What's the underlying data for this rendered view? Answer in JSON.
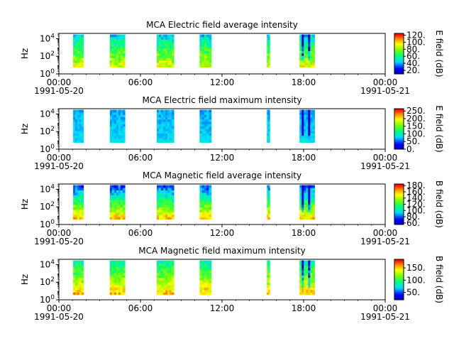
{
  "figure": {
    "background": "#ffffff",
    "x_tick_labels": [
      "00:00",
      "06:00",
      "12:00",
      "18:00",
      "00:00"
    ],
    "x_date_labels": [
      {
        "at": 0,
        "text": "1991-05-20"
      },
      {
        "at": 4,
        "text": "1991-05-21"
      }
    ]
  },
  "chart_data": [
    {
      "type": "heatmap",
      "title": "MCA  Electric field average intensity",
      "xlabel": "",
      "ylabel": "Hz",
      "yscale": "log",
      "y_tick_labels": [
        "10^0",
        "10^2",
        "10^4"
      ],
      "ylim_hz": [
        1,
        40000
      ],
      "x_hours": [
        0,
        24
      ],
      "segments_hours": [
        [
          1.05,
          1.8
        ],
        [
          3.75,
          4.85
        ],
        [
          7.2,
          8.45
        ],
        [
          10.35,
          11.2
        ],
        [
          15.3,
          15.5
        ],
        [
          17.7,
          18.8
        ]
      ],
      "colorbar": {
        "label": "E field (dB)",
        "ticks": [
          "20.",
          "40.",
          "60.",
          "80.",
          "100.",
          "120."
        ],
        "range": [
          10,
          125
        ]
      },
      "value_range": [
        40,
        120
      ],
      "colormap": "rainbow"
    },
    {
      "type": "heatmap",
      "title": "MCA  Electric field maximum intensity",
      "xlabel": "",
      "ylabel": "Hz",
      "yscale": "log",
      "y_tick_labels": [
        "10^0",
        "10^2",
        "10^4"
      ],
      "ylim_hz": [
        1,
        40000
      ],
      "x_hours": [
        0,
        24
      ],
      "segments_hours": [
        [
          1.05,
          1.8
        ],
        [
          3.75,
          4.85
        ],
        [
          7.2,
          8.45
        ],
        [
          10.35,
          11.2
        ],
        [
          15.3,
          15.5
        ],
        [
          17.7,
          18.8
        ]
      ],
      "colorbar": {
        "label": "E field (dB)",
        "ticks": [
          "0.",
          "50.",
          "100.",
          "150.",
          "200.",
          "250."
        ],
        "range": [
          0,
          265
        ]
      },
      "value_range": [
        40,
        120
      ],
      "colormap": "rainbow"
    },
    {
      "type": "heatmap",
      "title": "MCA  Magnetic field average intensity",
      "xlabel": "",
      "ylabel": "Hz",
      "yscale": "log",
      "y_tick_labels": [
        "10^0",
        "10^2",
        "10^4"
      ],
      "ylim_hz": [
        1,
        40000
      ],
      "x_hours": [
        0,
        24
      ],
      "segments_hours": [
        [
          1.05,
          1.8
        ],
        [
          3.75,
          4.85
        ],
        [
          7.2,
          8.45
        ],
        [
          10.35,
          11.2
        ],
        [
          15.3,
          15.5
        ],
        [
          17.7,
          18.8
        ]
      ],
      "colorbar": {
        "label": "B field (dB)",
        "ticks": [
          "60.",
          "80.",
          "100.",
          "120.",
          "140.",
          "160.",
          "180."
        ],
        "range": [
          55,
          185
        ]
      },
      "value_range": [
        60,
        165
      ],
      "colormap": "rainbow"
    },
    {
      "type": "heatmap",
      "title": "MCA  Magnetic field maximum intensity",
      "xlabel": "",
      "ylabel": "Hz",
      "yscale": "log",
      "y_tick_labels": [
        "10^0",
        "10^2",
        "10^4"
      ],
      "ylim_hz": [
        1,
        40000
      ],
      "x_hours": [
        0,
        24
      ],
      "segments_hours": [
        [
          1.05,
          1.8
        ],
        [
          3.75,
          4.85
        ],
        [
          7.2,
          8.45
        ],
        [
          10.35,
          11.2
        ],
        [
          15.3,
          15.5
        ],
        [
          17.7,
          18.8
        ]
      ],
      "colorbar": {
        "label": "B field (dB)",
        "ticks": [
          "50.",
          "100.",
          "150."
        ],
        "range": [
          20,
          185
        ]
      },
      "value_range": [
        60,
        165
      ],
      "colormap": "rainbow"
    }
  ]
}
